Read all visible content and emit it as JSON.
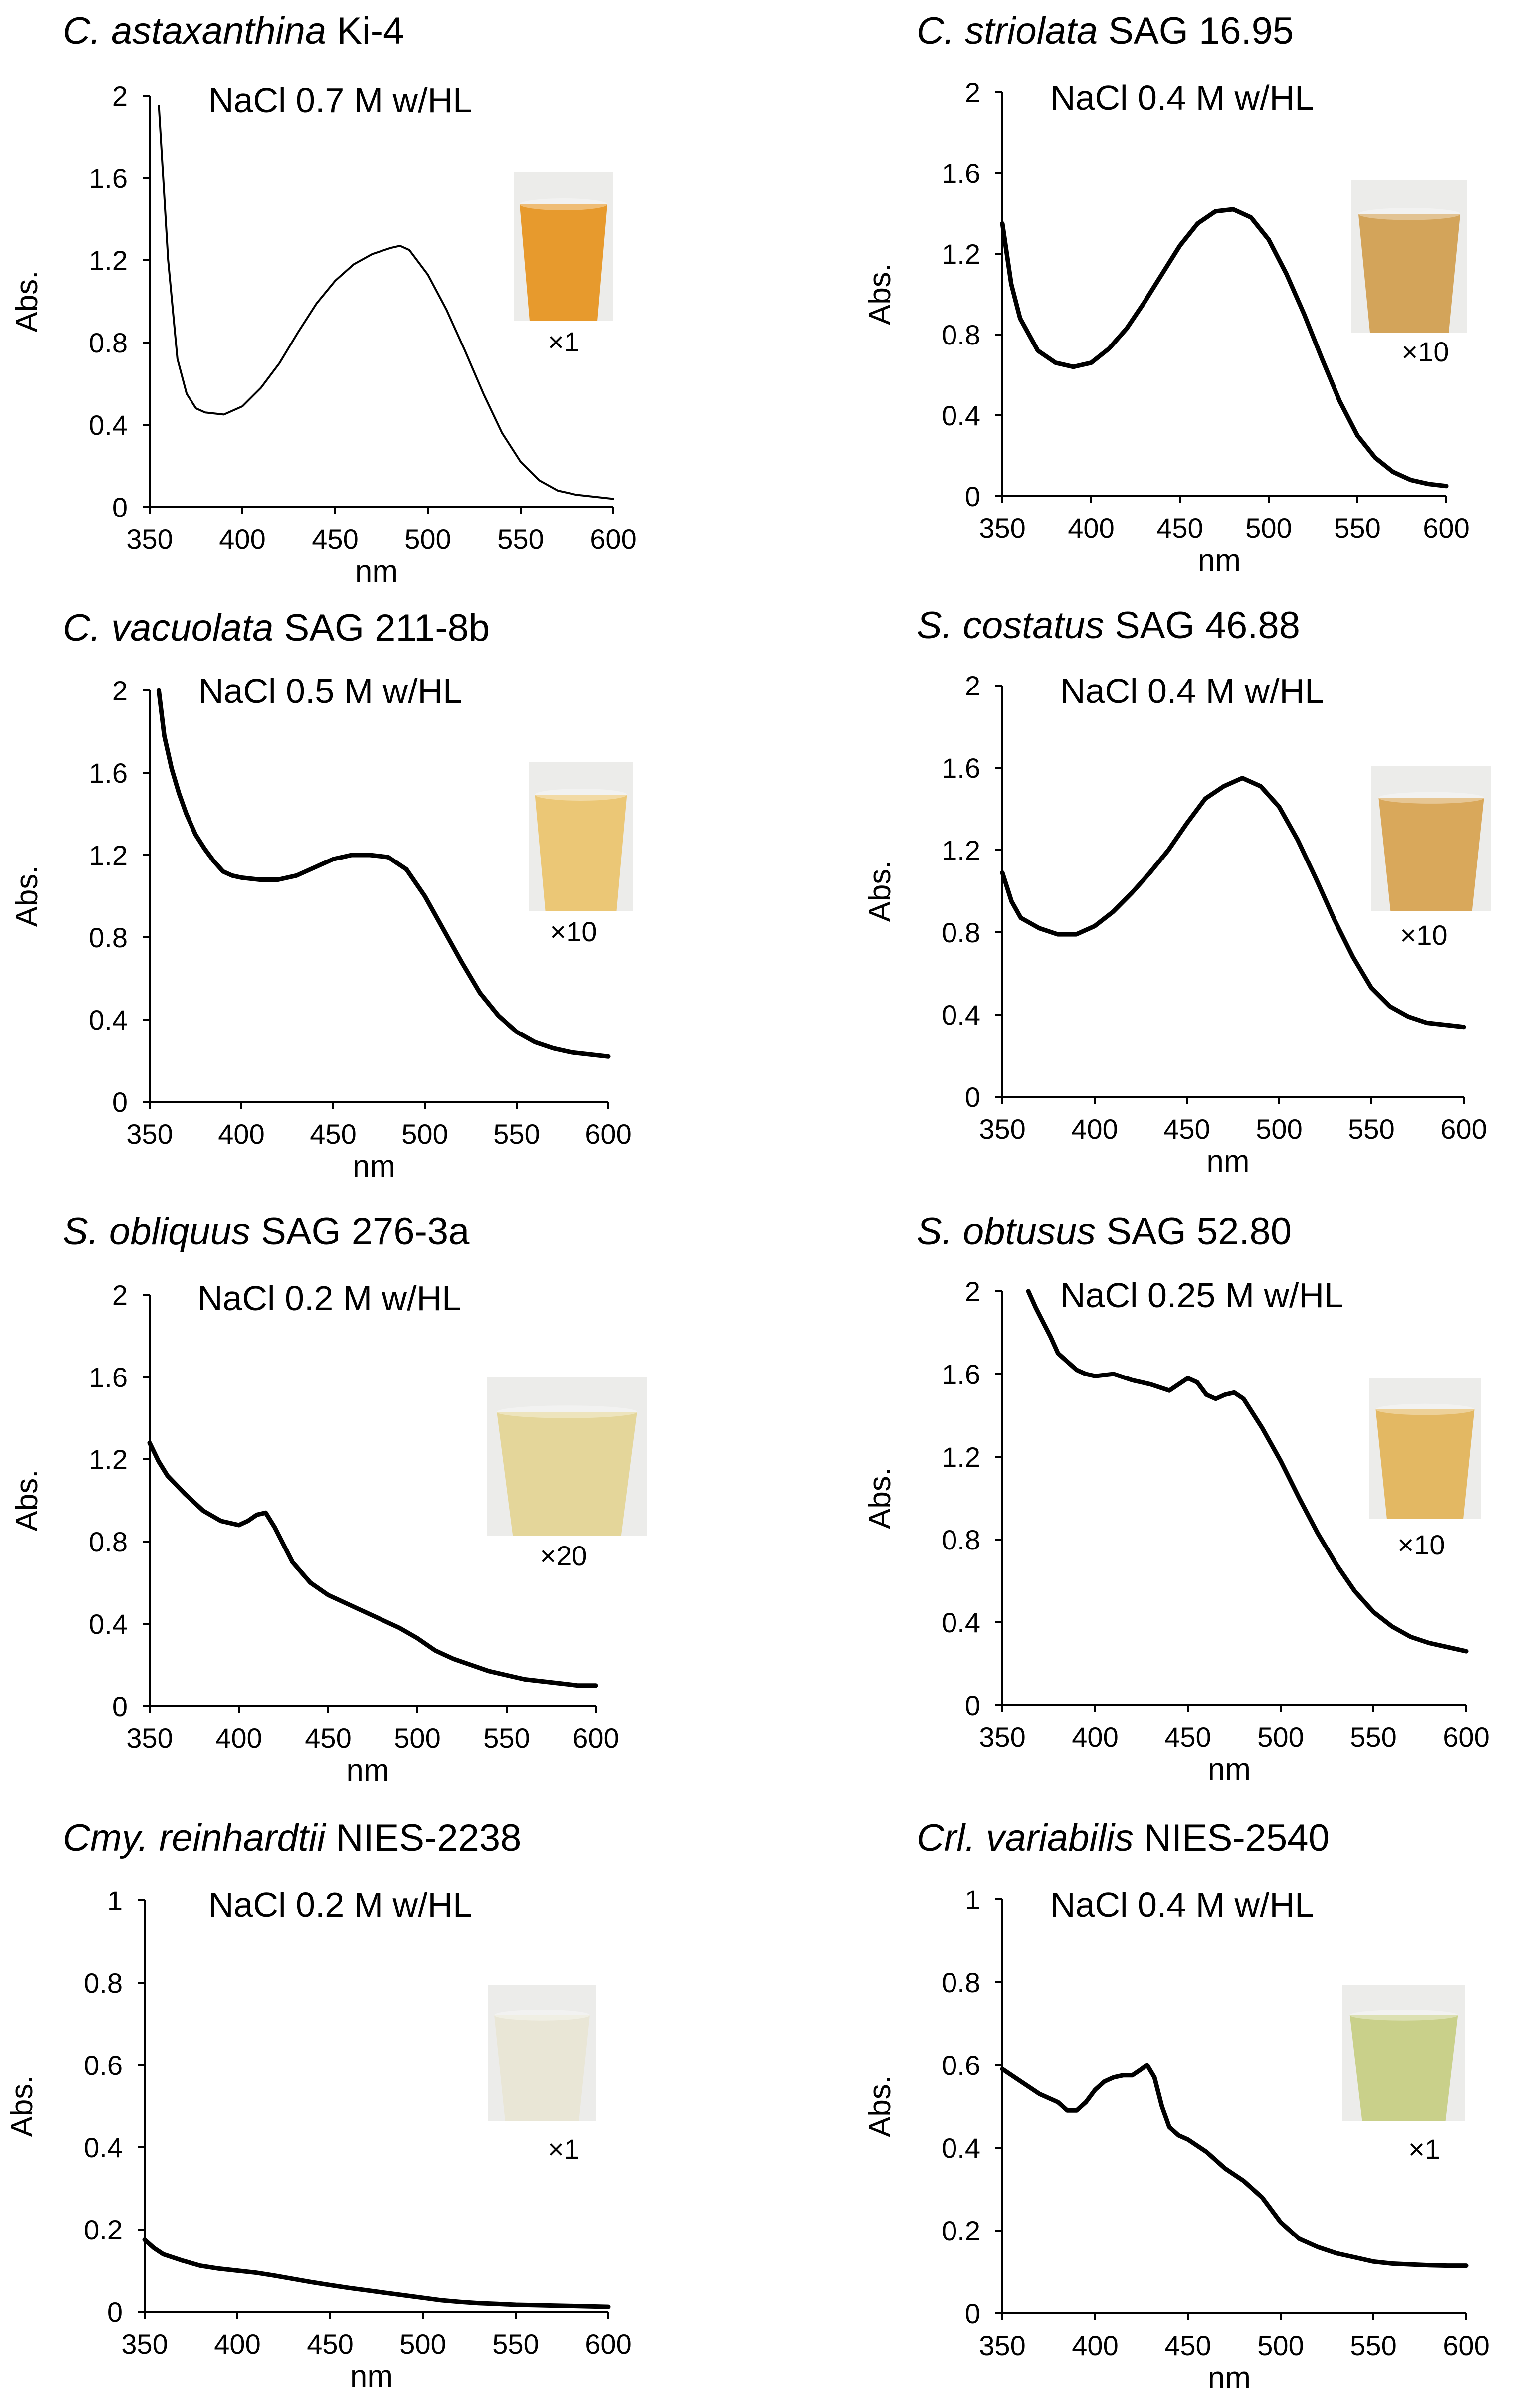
{
  "figure": {
    "description_free": true
  },
  "colors": {
    "axis": "#000000",
    "series": "#000000",
    "background": "#ffffff"
  },
  "chart_data": [
    {
      "type": "line",
      "title_italic": "C. astaxanthina",
      "title_rest": " Ki-4",
      "condition": "NaCl 0.7 M w/HL",
      "dilution": "×1",
      "xlabel": "nm",
      "ylabel": "Abs.",
      "xlim": [
        350,
        600
      ],
      "ylim": [
        0,
        2
      ],
      "xticks": [
        350,
        400,
        450,
        500,
        550,
        600
      ],
      "yticks": [
        0,
        0.4,
        0.8,
        1.2,
        1.6,
        2
      ],
      "ytick_labels": [
        "0",
        "0.4",
        "0.8",
        "1.2",
        "1.6",
        "2"
      ],
      "line": "thin",
      "sample_color": "#e79a2d",
      "x": [
        355,
        360,
        365,
        370,
        375,
        380,
        390,
        400,
        410,
        420,
        430,
        440,
        450,
        460,
        470,
        480,
        485,
        490,
        500,
        510,
        520,
        530,
        540,
        550,
        560,
        570,
        580,
        590,
        600
      ],
      "y": [
        1.95,
        1.2,
        0.72,
        0.55,
        0.48,
        0.46,
        0.45,
        0.49,
        0.58,
        0.7,
        0.85,
        0.99,
        1.1,
        1.18,
        1.23,
        1.26,
        1.27,
        1.25,
        1.13,
        0.96,
        0.76,
        0.55,
        0.36,
        0.22,
        0.13,
        0.08,
        0.06,
        0.05,
        0.04
      ]
    },
    {
      "type": "line",
      "title_italic": "C. striolata",
      "title_rest": " SAG 16.95",
      "condition": "NaCl 0.4 M w/HL",
      "dilution": "×10",
      "xlabel": "nm",
      "ylabel": "Abs.",
      "xlim": [
        350,
        600
      ],
      "ylim": [
        0,
        2
      ],
      "xticks": [
        350,
        400,
        450,
        500,
        550,
        600
      ],
      "yticks": [
        0,
        0.4,
        0.8,
        1.2,
        1.6,
        2
      ],
      "ytick_labels": [
        "0",
        "0.4",
        "0.8",
        "1.2",
        "1.6",
        "2"
      ],
      "line": "thick",
      "sample_color": "#d3a45a",
      "x": [
        350,
        355,
        360,
        370,
        380,
        390,
        400,
        410,
        420,
        430,
        440,
        450,
        460,
        470,
        480,
        490,
        500,
        510,
        520,
        530,
        540,
        550,
        560,
        570,
        580,
        590,
        600
      ],
      "y": [
        1.35,
        1.05,
        0.88,
        0.72,
        0.66,
        0.64,
        0.66,
        0.73,
        0.83,
        0.96,
        1.1,
        1.24,
        1.35,
        1.41,
        1.42,
        1.38,
        1.27,
        1.1,
        0.9,
        0.68,
        0.47,
        0.3,
        0.19,
        0.12,
        0.08,
        0.06,
        0.05
      ]
    },
    {
      "type": "line",
      "title_italic": "C. vacuolata",
      "title_rest": " SAG 211-8b",
      "condition": "NaCl 0.5 M w/HL",
      "dilution": "×10",
      "xlabel": "nm",
      "ylabel": "Abs.",
      "xlim": [
        350,
        600
      ],
      "ylim": [
        0,
        2
      ],
      "xticks": [
        350,
        400,
        450,
        500,
        550,
        600
      ],
      "yticks": [
        0,
        0.4,
        0.8,
        1.2,
        1.6,
        2
      ],
      "ytick_labels": [
        "0",
        "0.4",
        "0.8",
        "1.2",
        "1.6",
        "2"
      ],
      "line": "thick",
      "sample_color": "#ebc776",
      "x": [
        355,
        358,
        362,
        366,
        370,
        375,
        380,
        385,
        390,
        395,
        400,
        410,
        420,
        430,
        440,
        450,
        460,
        470,
        480,
        490,
        500,
        510,
        520,
        530,
        540,
        550,
        560,
        570,
        580,
        590,
        600
      ],
      "y": [
        2.0,
        1.78,
        1.62,
        1.5,
        1.4,
        1.3,
        1.23,
        1.17,
        1.12,
        1.1,
        1.09,
        1.08,
        1.08,
        1.1,
        1.14,
        1.18,
        1.2,
        1.2,
        1.19,
        1.13,
        1.0,
        0.84,
        0.68,
        0.53,
        0.42,
        0.34,
        0.29,
        0.26,
        0.24,
        0.23,
        0.22
      ]
    },
    {
      "type": "line",
      "title_italic": "S. costatus",
      "title_rest": " SAG 46.88",
      "condition": "NaCl 0.4 M w/HL",
      "dilution": "×10",
      "xlabel": "nm",
      "ylabel": "Abs.",
      "xlim": [
        350,
        600
      ],
      "ylim": [
        0,
        2
      ],
      "xticks": [
        350,
        400,
        450,
        500,
        550,
        600
      ],
      "yticks": [
        0,
        0.4,
        0.8,
        1.2,
        1.6,
        2
      ],
      "ytick_labels": [
        "0",
        "0.4",
        "0.8",
        "1.2",
        "1.6",
        "2"
      ],
      "line": "thick",
      "sample_color": "#d9a85b",
      "x": [
        350,
        355,
        360,
        370,
        380,
        390,
        400,
        410,
        420,
        430,
        440,
        450,
        460,
        470,
        480,
        490,
        500,
        510,
        520,
        530,
        540,
        550,
        560,
        570,
        580,
        590,
        600
      ],
      "y": [
        1.09,
        0.95,
        0.87,
        0.82,
        0.79,
        0.79,
        0.83,
        0.9,
        0.99,
        1.09,
        1.2,
        1.33,
        1.45,
        1.51,
        1.55,
        1.51,
        1.41,
        1.25,
        1.06,
        0.86,
        0.68,
        0.53,
        0.44,
        0.39,
        0.36,
        0.35,
        0.34
      ]
    },
    {
      "type": "line",
      "title_italic": "S. obliquus",
      "title_rest": " SAG 276-3a",
      "condition": "NaCl 0.2 M w/HL",
      "dilution": "×20",
      "xlabel": "nm",
      "ylabel": "Abs.",
      "xlim": [
        350,
        600
      ],
      "ylim": [
        0,
        2
      ],
      "xticks": [
        350,
        400,
        450,
        500,
        550,
        600
      ],
      "yticks": [
        0,
        0.4,
        0.8,
        1.2,
        1.6,
        2
      ],
      "ytick_labels": [
        "0",
        "0.4",
        "0.8",
        "1.2",
        "1.6",
        "2"
      ],
      "line": "thick",
      "sample_color": "#e4d69a",
      "x": [
        350,
        355,
        360,
        370,
        380,
        390,
        400,
        405,
        410,
        415,
        420,
        430,
        440,
        450,
        460,
        470,
        480,
        490,
        500,
        510,
        520,
        530,
        540,
        550,
        560,
        570,
        580,
        590,
        600
      ],
      "y": [
        1.28,
        1.19,
        1.12,
        1.03,
        0.95,
        0.9,
        0.88,
        0.9,
        0.93,
        0.94,
        0.87,
        0.7,
        0.6,
        0.54,
        0.5,
        0.46,
        0.42,
        0.38,
        0.33,
        0.27,
        0.23,
        0.2,
        0.17,
        0.15,
        0.13,
        0.12,
        0.11,
        0.1,
        0.1
      ]
    },
    {
      "type": "line",
      "title_italic": "S. obtusus",
      "title_rest": " SAG 52.80",
      "condition": "NaCl 0.25 M w/HL",
      "dilution": "×10",
      "xlabel": "nm",
      "ylabel": "Abs.",
      "xlim": [
        350,
        600
      ],
      "ylim": [
        0,
        2
      ],
      "xticks": [
        350,
        400,
        450,
        500,
        550,
        600
      ],
      "yticks": [
        0,
        0.4,
        0.8,
        1.2,
        1.6,
        2
      ],
      "ytick_labels": [
        "0",
        "0.4",
        "0.8",
        "1.2",
        "1.6",
        "2"
      ],
      "line": "thick",
      "sample_color": "#e3b863",
      "x": [
        364,
        368,
        372,
        376,
        380,
        385,
        390,
        395,
        400,
        410,
        420,
        430,
        440,
        450,
        455,
        460,
        465,
        470,
        475,
        480,
        490,
        500,
        510,
        520,
        530,
        540,
        550,
        560,
        570,
        580,
        590,
        600
      ],
      "y": [
        2.0,
        1.92,
        1.85,
        1.78,
        1.7,
        1.66,
        1.62,
        1.6,
        1.59,
        1.6,
        1.57,
        1.55,
        1.52,
        1.58,
        1.56,
        1.5,
        1.48,
        1.5,
        1.51,
        1.48,
        1.34,
        1.18,
        1.0,
        0.83,
        0.68,
        0.55,
        0.45,
        0.38,
        0.33,
        0.3,
        0.28,
        0.26
      ]
    },
    {
      "type": "line",
      "title_italic": "Cmy. reinhardtii",
      "title_rest": " NIES-2238",
      "condition": "NaCl 0.2 M w/HL",
      "dilution": "×1",
      "xlabel": "nm",
      "ylabel": "Abs.",
      "xlim": [
        350,
        600
      ],
      "ylim": [
        0,
        1
      ],
      "xticks": [
        350,
        400,
        450,
        500,
        550,
        600
      ],
      "yticks": [
        0,
        0.2,
        0.4,
        0.6,
        0.8,
        1
      ],
      "ytick_labels": [
        "0",
        "0.2",
        "0.4",
        "0.6",
        "0.8",
        "1"
      ],
      "line": "thick",
      "sample_color": "#e9e6d6",
      "x": [
        350,
        355,
        360,
        370,
        380,
        390,
        400,
        410,
        420,
        430,
        440,
        450,
        460,
        470,
        480,
        490,
        500,
        510,
        520,
        530,
        540,
        550,
        560,
        570,
        580,
        590,
        600
      ],
      "y": [
        0.175,
        0.155,
        0.14,
        0.125,
        0.112,
        0.105,
        0.1,
        0.095,
        0.088,
        0.08,
        0.072,
        0.065,
        0.058,
        0.052,
        0.046,
        0.04,
        0.034,
        0.028,
        0.024,
        0.021,
        0.019,
        0.017,
        0.016,
        0.015,
        0.014,
        0.013,
        0.012
      ]
    },
    {
      "type": "line",
      "title_italic": "Crl. variabilis",
      "title_rest": " NIES-2540",
      "condition": "NaCl 0.4 M w/HL",
      "dilution": "×1",
      "xlabel": "nm",
      "ylabel": "Abs.",
      "xlim": [
        350,
        600
      ],
      "ylim": [
        0,
        1
      ],
      "xticks": [
        350,
        400,
        450,
        500,
        550,
        600
      ],
      "yticks": [
        0,
        0.2,
        0.4,
        0.6,
        0.8,
        1
      ],
      "ytick_labels": [
        "0",
        "0.2",
        "0.4",
        "0.6",
        "0.8",
        "1"
      ],
      "line": "thick",
      "sample_color": "#c9d08a",
      "x": [
        350,
        360,
        370,
        380,
        385,
        390,
        395,
        400,
        405,
        410,
        415,
        420,
        425,
        428,
        432,
        436,
        440,
        445,
        450,
        460,
        470,
        480,
        490,
        500,
        510,
        520,
        530,
        540,
        550,
        560,
        570,
        580,
        590,
        600
      ],
      "y": [
        0.59,
        0.56,
        0.53,
        0.51,
        0.49,
        0.49,
        0.51,
        0.54,
        0.56,
        0.57,
        0.575,
        0.575,
        0.59,
        0.6,
        0.57,
        0.5,
        0.45,
        0.43,
        0.42,
        0.39,
        0.35,
        0.32,
        0.28,
        0.22,
        0.18,
        0.16,
        0.145,
        0.135,
        0.125,
        0.12,
        0.118,
        0.116,
        0.115,
        0.115
      ]
    }
  ]
}
